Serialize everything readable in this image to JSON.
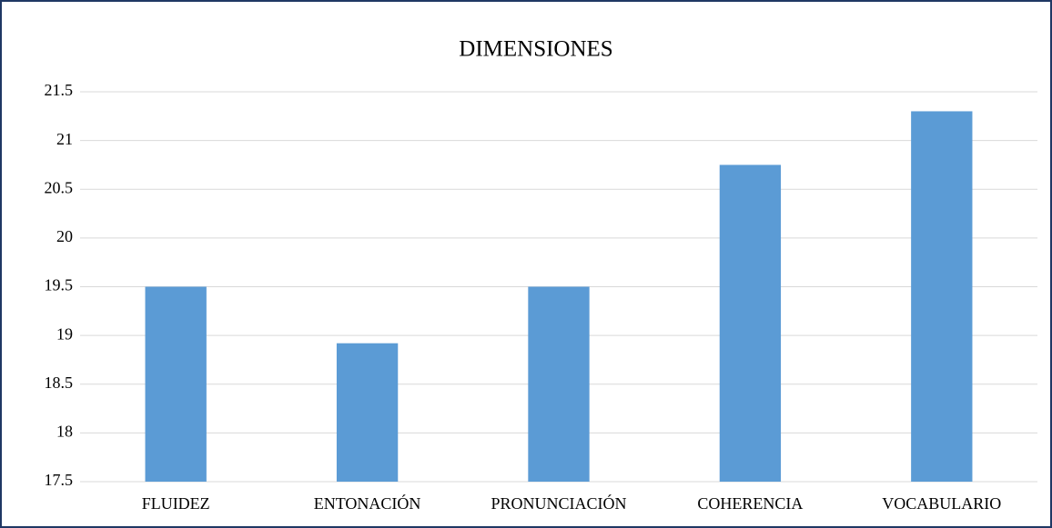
{
  "chart_data": {
    "type": "bar",
    "title": "DIMENSIONES",
    "categories": [
      "FLUIDEZ",
      "ENTONACIÓN",
      "PRONUNCIACIÓN",
      "COHERENCIA",
      "VOCABULARIO"
    ],
    "values": [
      19.5,
      18.92,
      19.5,
      20.75,
      21.3
    ],
    "color": "#5b9bd5",
    "ylim": [
      17.5,
      21.5
    ],
    "yticks": [
      17.5,
      18,
      18.5,
      19,
      19.5,
      20,
      20.5,
      21,
      21.5
    ],
    "grid": true
  }
}
